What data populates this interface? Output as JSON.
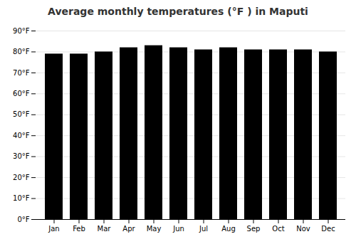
{
  "chart_data": {
    "type": "bar",
    "title": "Average monthly temperatures (°F ) in Maputi",
    "categories": [
      "Jan",
      "Feb",
      "Mar",
      "Apr",
      "May",
      "Jun",
      "Jul",
      "Aug",
      "Sep",
      "Oct",
      "Nov",
      "Dec"
    ],
    "values": [
      79,
      79,
      80,
      82,
      83,
      82,
      81,
      82,
      81,
      81,
      81,
      80
    ],
    "ylim": [
      0,
      90
    ],
    "yticks": [
      {
        "value": 0,
        "label": "0°F"
      },
      {
        "value": 10,
        "label": "10°F"
      },
      {
        "value": 20,
        "label": "20°F"
      },
      {
        "value": 30,
        "label": "30°F"
      },
      {
        "value": 40,
        "label": "40°F"
      },
      {
        "value": 50,
        "label": "50°F"
      },
      {
        "value": 60,
        "label": "60°F"
      },
      {
        "value": 70,
        "label": "70°F"
      },
      {
        "value": 80,
        "label": "80°F"
      },
      {
        "value": 90,
        "label": "90°F"
      }
    ],
    "grid": true
  }
}
